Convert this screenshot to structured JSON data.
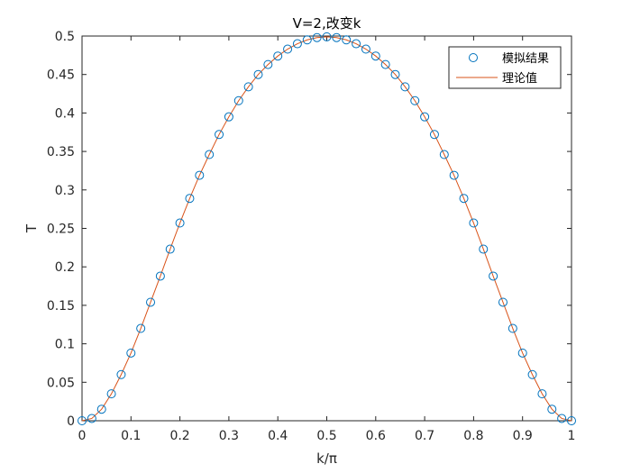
{
  "chart_data": {
    "type": "line",
    "title": "V=2,改变k",
    "xlabel": "k/π",
    "ylabel": "T",
    "xlim": [
      0,
      1
    ],
    "ylim": [
      0,
      0.5
    ],
    "x_ticks": [
      0,
      0.1,
      0.2,
      0.3,
      0.4,
      0.5,
      0.6,
      0.7,
      0.8,
      0.9,
      1
    ],
    "y_ticks": [
      0,
      0.05,
      0.1,
      0.15,
      0.2,
      0.25,
      0.3,
      0.35,
      0.4,
      0.45,
      0.5
    ],
    "x_tick_labels": [
      "0",
      "0.1",
      "0.2",
      "0.3",
      "0.4",
      "0.5",
      "0.6",
      "0.7",
      "0.8",
      "0.9",
      "1"
    ],
    "y_tick_labels": [
      "0",
      "0.05",
      "0.1",
      "0.15",
      "0.2",
      "0.25",
      "0.3",
      "0.35",
      "0.4",
      "0.45",
      "0.5"
    ],
    "grid": false,
    "legend_position": "top-right",
    "series": [
      {
        "name": "模拟结果",
        "style": "markers",
        "marker": "circle",
        "color": "#0072BD",
        "x": [
          0,
          0.02,
          0.04,
          0.06,
          0.08,
          0.1,
          0.12,
          0.14,
          0.16,
          0.18,
          0.2,
          0.22,
          0.24,
          0.26,
          0.28,
          0.3,
          0.32,
          0.34,
          0.36,
          0.38,
          0.4,
          0.42,
          0.44,
          0.46,
          0.48,
          0.5,
          0.52,
          0.54,
          0.56,
          0.58,
          0.6,
          0.62,
          0.64,
          0.66,
          0.68,
          0.7,
          0.72,
          0.74,
          0.76,
          0.78,
          0.8,
          0.82,
          0.84,
          0.86,
          0.88,
          0.9,
          0.92,
          0.94,
          0.96,
          0.98,
          1
        ],
        "values": [
          0,
          0.003,
          0.015,
          0.035,
          0.06,
          0.088,
          0.12,
          0.154,
          0.188,
          0.223,
          0.257,
          0.289,
          0.319,
          0.346,
          0.372,
          0.395,
          0.416,
          0.434,
          0.45,
          0.463,
          0.474,
          0.483,
          0.49,
          0.495,
          0.498,
          0.499,
          0.498,
          0.495,
          0.49,
          0.483,
          0.474,
          0.463,
          0.45,
          0.434,
          0.416,
          0.395,
          0.372,
          0.346,
          0.319,
          0.289,
          0.257,
          0.223,
          0.188,
          0.154,
          0.12,
          0.088,
          0.06,
          0.035,
          0.015,
          0.003,
          0
        ]
      },
      {
        "name": "理论值",
        "style": "line",
        "color": "#D95319",
        "x": [
          0,
          0.02,
          0.04,
          0.06,
          0.08,
          0.1,
          0.12,
          0.14,
          0.16,
          0.18,
          0.2,
          0.22,
          0.24,
          0.26,
          0.28,
          0.3,
          0.32,
          0.34,
          0.36,
          0.38,
          0.4,
          0.42,
          0.44,
          0.46,
          0.48,
          0.5,
          0.52,
          0.54,
          0.56,
          0.58,
          0.6,
          0.62,
          0.64,
          0.66,
          0.68,
          0.7,
          0.72,
          0.74,
          0.76,
          0.78,
          0.8,
          0.82,
          0.84,
          0.86,
          0.88,
          0.9,
          0.92,
          0.94,
          0.96,
          0.98,
          1
        ],
        "values": [
          0,
          0.003,
          0.015,
          0.035,
          0.06,
          0.088,
          0.12,
          0.154,
          0.188,
          0.223,
          0.257,
          0.289,
          0.319,
          0.346,
          0.372,
          0.395,
          0.416,
          0.434,
          0.45,
          0.463,
          0.474,
          0.483,
          0.49,
          0.495,
          0.498,
          0.499,
          0.498,
          0.495,
          0.49,
          0.483,
          0.474,
          0.463,
          0.45,
          0.434,
          0.416,
          0.395,
          0.372,
          0.346,
          0.319,
          0.289,
          0.257,
          0.223,
          0.188,
          0.154,
          0.12,
          0.088,
          0.06,
          0.035,
          0.015,
          0.003,
          0
        ]
      }
    ]
  }
}
